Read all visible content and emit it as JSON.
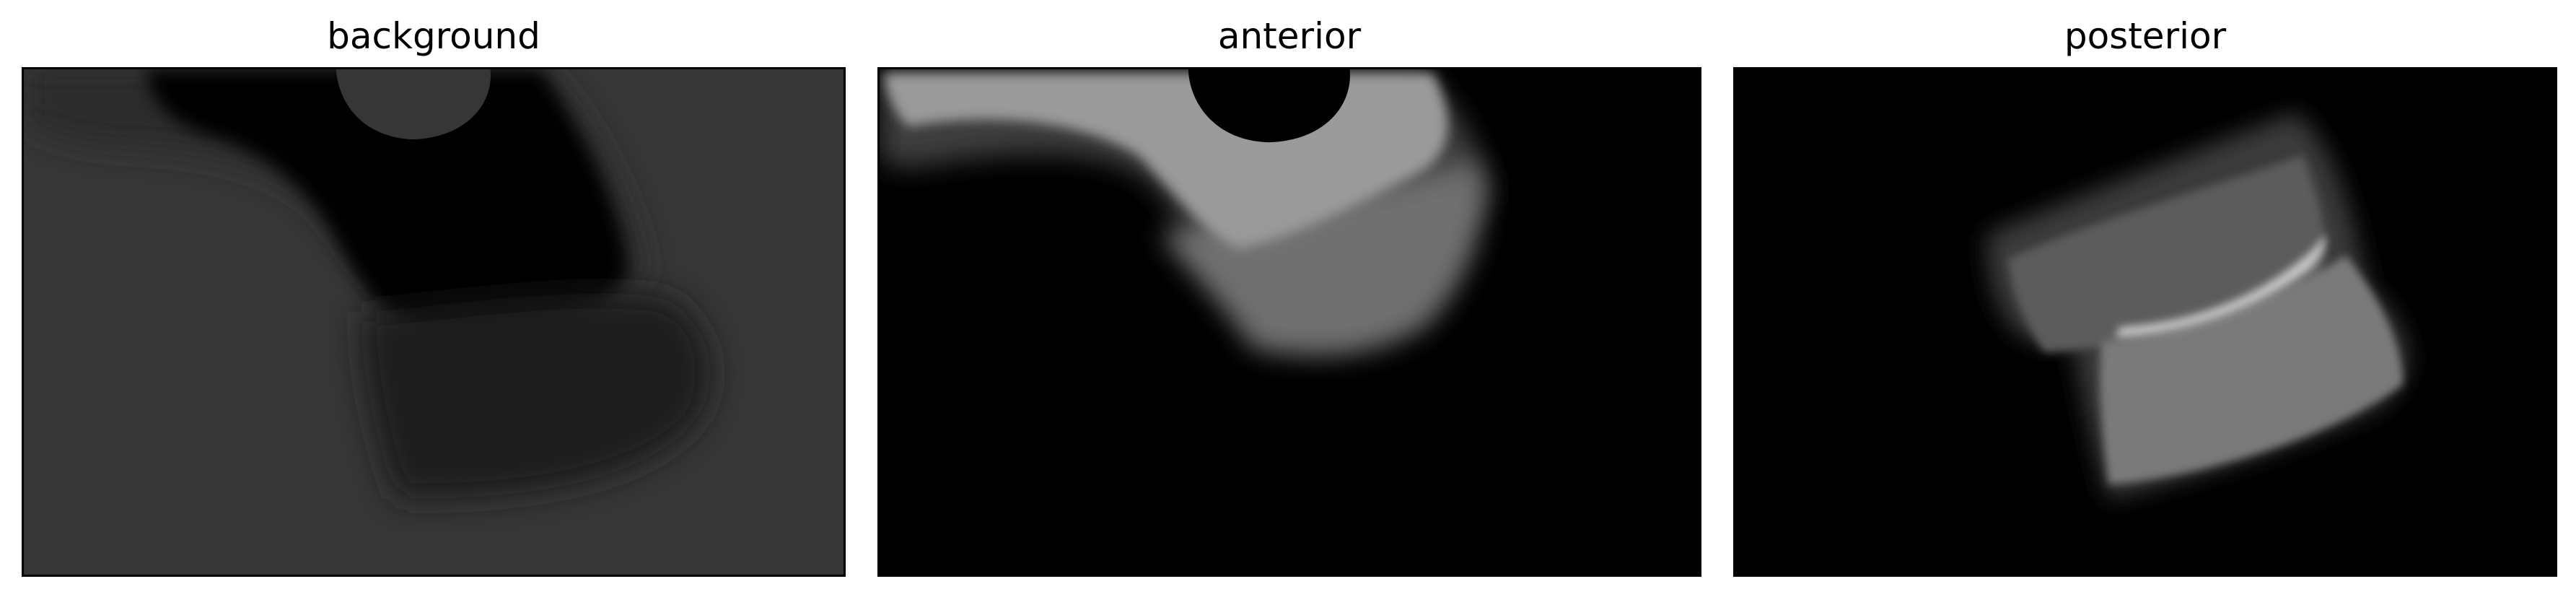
{
  "panels": [
    {
      "title": "background"
    },
    {
      "title": "anterior"
    },
    {
      "title": "posterior"
    }
  ],
  "colors": {
    "figure_background": "#ffffff",
    "frame": "#000000",
    "background_fill": "#363636",
    "background_dark_region": "#050505",
    "anterior_bright": "#9a9a9a",
    "anterior_mid": "#6f6f6f",
    "posterior_band": "#7a7a7a",
    "posterior_highlight": "#c6c6c6"
  }
}
